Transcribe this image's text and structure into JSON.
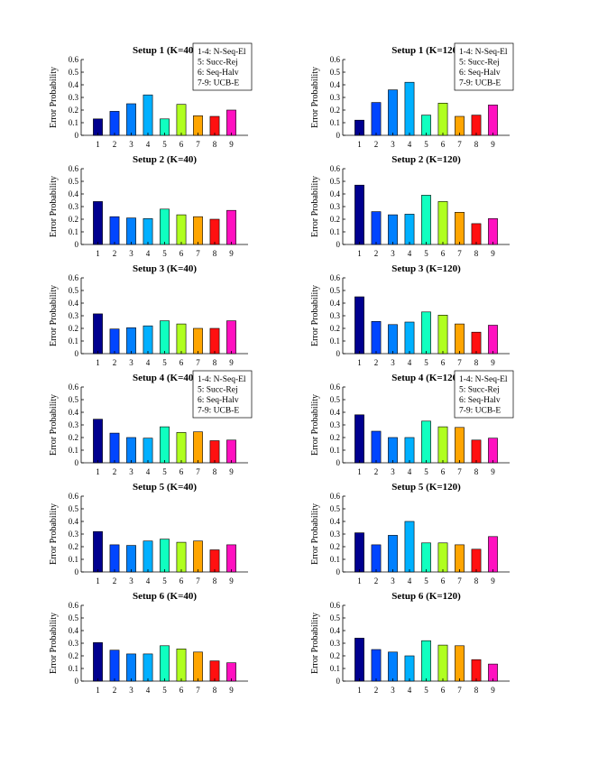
{
  "figure": {
    "ylabel": "Error Probability",
    "bar_colors": [
      "#00008f",
      "#0045ff",
      "#0080ff",
      "#00b0ff",
      "#10ffc0",
      "#b0ff20",
      "#ffa500",
      "#ff1010",
      "#ff10c0"
    ],
    "legend_lines": [
      "1-4: N-Seq-El",
      "5: Succ-Rej",
      "6: Seq-Halv",
      "7-9: UCB-E"
    ]
  },
  "chart_data": [
    {
      "type": "bar",
      "title": "Setup 1 (K=40)",
      "categories": [
        "1",
        "2",
        "3",
        "4",
        "5",
        "6",
        "7",
        "8",
        "9"
      ],
      "values": [
        0.13,
        0.19,
        0.25,
        0.32,
        0.13,
        0.245,
        0.155,
        0.15,
        0.2
      ],
      "ylim": [
        0,
        0.6
      ],
      "yticks": [
        "0",
        "0.1",
        "0.2",
        "0.3",
        "0.4",
        "0.5",
        "0.6"
      ],
      "ylabel": "Error Probability",
      "legend": "top-right"
    },
    {
      "type": "bar",
      "title": "Setup 1 (K=120)",
      "categories": [
        "1",
        "2",
        "3",
        "4",
        "5",
        "6",
        "7",
        "8",
        "9"
      ],
      "values": [
        0.12,
        0.26,
        0.36,
        0.42,
        0.16,
        0.255,
        0.15,
        0.16,
        0.24
      ],
      "ylim": [
        0,
        0.6
      ],
      "yticks": [
        "0",
        "0.1",
        "0.2",
        "0.3",
        "0.4",
        "0.5",
        "0.6"
      ],
      "ylabel": "Error Probability",
      "legend": "top-right"
    },
    {
      "type": "bar",
      "title": "Setup 2 (K=40)",
      "categories": [
        "1",
        "2",
        "3",
        "4",
        "5",
        "6",
        "7",
        "8",
        "9"
      ],
      "values": [
        0.34,
        0.22,
        0.21,
        0.205,
        0.28,
        0.235,
        0.22,
        0.2,
        0.27
      ],
      "ylim": [
        0,
        0.6
      ],
      "yticks": [
        "0",
        "0.1",
        "0.2",
        "0.3",
        "0.4",
        "0.5",
        "0.6"
      ],
      "ylabel": "Error Probability"
    },
    {
      "type": "bar",
      "title": "Setup 2 (K=120)",
      "categories": [
        "1",
        "2",
        "3",
        "4",
        "5",
        "6",
        "7",
        "8",
        "9"
      ],
      "values": [
        0.47,
        0.26,
        0.235,
        0.24,
        0.39,
        0.34,
        0.255,
        0.165,
        0.205
      ],
      "ylim": [
        0,
        0.6
      ],
      "yticks": [
        "0",
        "0.1",
        "0.2",
        "0.3",
        "0.4",
        "0.5",
        "0.6"
      ],
      "ylabel": "Error Probability"
    },
    {
      "type": "bar",
      "title": "Setup 3 (K=40)",
      "categories": [
        "1",
        "2",
        "3",
        "4",
        "5",
        "6",
        "7",
        "8",
        "9"
      ],
      "values": [
        0.315,
        0.195,
        0.205,
        0.22,
        0.26,
        0.235,
        0.2,
        0.2,
        0.26
      ],
      "ylim": [
        0,
        0.6
      ],
      "yticks": [
        "0",
        "0.1",
        "0.2",
        "0.3",
        "0.4",
        "0.5",
        "0.6"
      ],
      "ylabel": "Error Probability"
    },
    {
      "type": "bar",
      "title": "Setup 3 (K=120)",
      "categories": [
        "1",
        "2",
        "3",
        "4",
        "5",
        "6",
        "7",
        "8",
        "9"
      ],
      "values": [
        0.45,
        0.255,
        0.23,
        0.25,
        0.33,
        0.305,
        0.235,
        0.17,
        0.225
      ],
      "ylim": [
        0,
        0.6
      ],
      "yticks": [
        "0",
        "0.1",
        "0.2",
        "0.3",
        "0.4",
        "0.5",
        "0.6"
      ],
      "ylabel": "Error Probability"
    },
    {
      "type": "bar",
      "title": "Setup 4 (K=40)",
      "categories": [
        "1",
        "2",
        "3",
        "4",
        "5",
        "6",
        "7",
        "8",
        "9"
      ],
      "values": [
        0.345,
        0.235,
        0.2,
        0.195,
        0.285,
        0.24,
        0.245,
        0.175,
        0.18
      ],
      "ylim": [
        0,
        0.6
      ],
      "yticks": [
        "0",
        "0.1",
        "0.2",
        "0.3",
        "0.4",
        "0.5",
        "0.6"
      ],
      "ylabel": "Error Probability",
      "legend": "top-right"
    },
    {
      "type": "bar",
      "title": "Setup 4 (K=120)",
      "categories": [
        "1",
        "2",
        "3",
        "4",
        "5",
        "6",
        "7",
        "8",
        "9"
      ],
      "values": [
        0.38,
        0.25,
        0.2,
        0.2,
        0.33,
        0.285,
        0.28,
        0.18,
        0.195
      ],
      "ylim": [
        0,
        0.6
      ],
      "yticks": [
        "0",
        "0.1",
        "0.2",
        "0.3",
        "0.4",
        "0.5",
        "0.6"
      ],
      "ylabel": "Error Probability",
      "legend": "top-right"
    },
    {
      "type": "bar",
      "title": "Setup 5 (K=40)",
      "categories": [
        "1",
        "2",
        "3",
        "4",
        "5",
        "6",
        "7",
        "8",
        "9"
      ],
      "values": [
        0.32,
        0.215,
        0.21,
        0.245,
        0.26,
        0.235,
        0.245,
        0.175,
        0.215
      ],
      "ylim": [
        0,
        0.6
      ],
      "yticks": [
        "0",
        "0.1",
        "0.2",
        "0.3",
        "0.4",
        "0.5",
        "0.6"
      ],
      "ylabel": "Error Probability"
    },
    {
      "type": "bar",
      "title": "Setup 5 (K=120)",
      "categories": [
        "1",
        "2",
        "3",
        "4",
        "5",
        "6",
        "7",
        "8",
        "9"
      ],
      "values": [
        0.31,
        0.215,
        0.29,
        0.4,
        0.23,
        0.23,
        0.215,
        0.18,
        0.28
      ],
      "ylim": [
        0,
        0.6
      ],
      "yticks": [
        "0",
        "0.1",
        "0.2",
        "0.3",
        "0.4",
        "0.5",
        "0.6"
      ],
      "ylabel": "Error Probability"
    },
    {
      "type": "bar",
      "title": "Setup 6 (K=40)",
      "categories": [
        "1",
        "2",
        "3",
        "4",
        "5",
        "6",
        "7",
        "8",
        "9"
      ],
      "values": [
        0.305,
        0.245,
        0.215,
        0.215,
        0.28,
        0.255,
        0.23,
        0.16,
        0.145
      ],
      "ylim": [
        0,
        0.6
      ],
      "yticks": [
        "0",
        "0.1",
        "0.2",
        "0.3",
        "0.4",
        "0.5",
        "0.6"
      ],
      "ylabel": "Error Probability"
    },
    {
      "type": "bar",
      "title": "Setup 6 (K=120)",
      "categories": [
        "1",
        "2",
        "3",
        "4",
        "5",
        "6",
        "7",
        "8",
        "9"
      ],
      "values": [
        0.34,
        0.25,
        0.23,
        0.2,
        0.32,
        0.285,
        0.28,
        0.17,
        0.135
      ],
      "ylim": [
        0,
        0.6
      ],
      "yticks": [
        "0",
        "0.1",
        "0.2",
        "0.3",
        "0.4",
        "0.5",
        "0.6"
      ],
      "ylabel": "Error Probability"
    }
  ]
}
